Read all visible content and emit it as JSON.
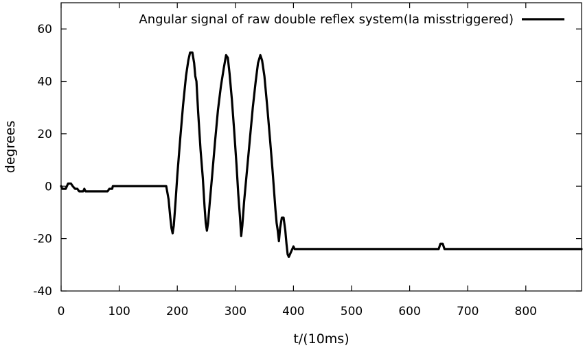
{
  "chart_data": {
    "type": "line",
    "title": "",
    "xlabel": "t/(10ms)",
    "ylabel": "degrees",
    "xlim": [
      0,
      896
    ],
    "ylim": [
      -40,
      70
    ],
    "x_ticks": [
      0,
      100,
      200,
      300,
      400,
      500,
      600,
      700,
      800
    ],
    "y_ticks": [
      -40,
      -20,
      0,
      20,
      40,
      60
    ],
    "grid": false,
    "legend_position": "top-right",
    "series": [
      {
        "name": "Angular signal of raw double reflex system(Ia misstriggered)",
        "color": "#000000",
        "points": [
          [
            0,
            0
          ],
          [
            2,
            -1
          ],
          [
            8,
            -1
          ],
          [
            10,
            0
          ],
          [
            12,
            1
          ],
          [
            17,
            1
          ],
          [
            20,
            0
          ],
          [
            24,
            -1
          ],
          [
            28,
            -1
          ],
          [
            31,
            -2
          ],
          [
            38,
            -2
          ],
          [
            40,
            -1
          ],
          [
            42,
            -2
          ],
          [
            80,
            -2
          ],
          [
            83,
            -1
          ],
          [
            88,
            -1
          ],
          [
            89,
            0
          ],
          [
            181,
            0
          ],
          [
            185,
            -5
          ],
          [
            188,
            -12
          ],
          [
            190,
            -16
          ],
          [
            192,
            -18
          ],
          [
            194,
            -15
          ],
          [
            197,
            -6
          ],
          [
            200,
            4
          ],
          [
            205,
            18
          ],
          [
            210,
            31
          ],
          [
            215,
            42
          ],
          [
            219,
            48
          ],
          [
            222,
            51
          ],
          [
            226,
            51
          ],
          [
            229,
            47
          ],
          [
            231,
            42
          ],
          [
            233,
            40
          ],
          [
            236,
            28
          ],
          [
            240,
            14
          ],
          [
            244,
            3
          ],
          [
            247,
            -8
          ],
          [
            249,
            -14
          ],
          [
            251,
            -17
          ],
          [
            253,
            -14
          ],
          [
            256,
            -6
          ],
          [
            260,
            4
          ],
          [
            265,
            17
          ],
          [
            270,
            29
          ],
          [
            275,
            38
          ],
          [
            280,
            45
          ],
          [
            284,
            50
          ],
          [
            287,
            49
          ],
          [
            290,
            43
          ],
          [
            294,
            33
          ],
          [
            298,
            21
          ],
          [
            302,
            8
          ],
          [
            305,
            -3
          ],
          [
            308,
            -12
          ],
          [
            310,
            -19
          ],
          [
            312,
            -15
          ],
          [
            315,
            -6
          ],
          [
            320,
            6
          ],
          [
            325,
            18
          ],
          [
            330,
            30
          ],
          [
            335,
            40
          ],
          [
            339,
            47
          ],
          [
            343,
            50
          ],
          [
            346,
            48
          ],
          [
            350,
            42
          ],
          [
            355,
            30
          ],
          [
            360,
            17
          ],
          [
            364,
            6
          ],
          [
            367,
            -3
          ],
          [
            369,
            -9
          ],
          [
            371,
            -14
          ],
          [
            373,
            -17
          ],
          [
            375,
            -21
          ],
          [
            377,
            -16
          ],
          [
            380,
            -12
          ],
          [
            383,
            -12
          ],
          [
            386,
            -17
          ],
          [
            388,
            -22
          ],
          [
            390,
            -26
          ],
          [
            392,
            -27
          ],
          [
            394,
            -26
          ],
          [
            396,
            -25
          ],
          [
            398,
            -24
          ],
          [
            400,
            -23
          ],
          [
            402,
            -24
          ],
          [
            405,
            -24
          ],
          [
            650,
            -24
          ],
          [
            653,
            -22
          ],
          [
            657,
            -22
          ],
          [
            660,
            -24
          ],
          [
            896,
            -24
          ]
        ]
      }
    ]
  }
}
